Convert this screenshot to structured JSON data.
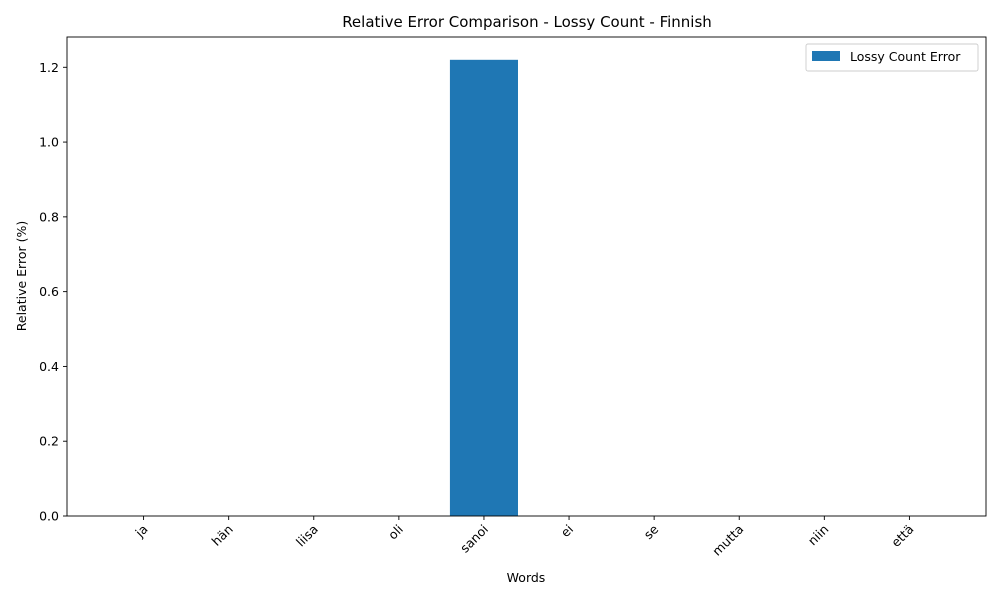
{
  "chart_data": {
    "type": "bar",
    "title": "Relative Error Comparison - Lossy Count - Finnish",
    "xlabel": "Words",
    "ylabel": "Relative Error (%)",
    "categories": [
      "ja",
      "hän",
      "liisa",
      "oli",
      "sanoi",
      "ei",
      "se",
      "mutta",
      "niin",
      "että"
    ],
    "series": [
      {
        "name": "Lossy Count Error",
        "color": "#1f77b4",
        "values": [
          0,
          0,
          0,
          0,
          1.22,
          0,
          0,
          0,
          0,
          0
        ]
      }
    ],
    "ylim": [
      0,
      1.281
    ],
    "yticks": [
      0.0,
      0.2,
      0.4,
      0.6,
      0.8,
      1.0,
      1.2
    ],
    "ytick_labels": [
      "0.0",
      "0.2",
      "0.4",
      "0.6",
      "0.8",
      "1.0",
      "1.2"
    ],
    "xtick_rotation": 45,
    "grid": false,
    "legend_position": "top-right"
  }
}
